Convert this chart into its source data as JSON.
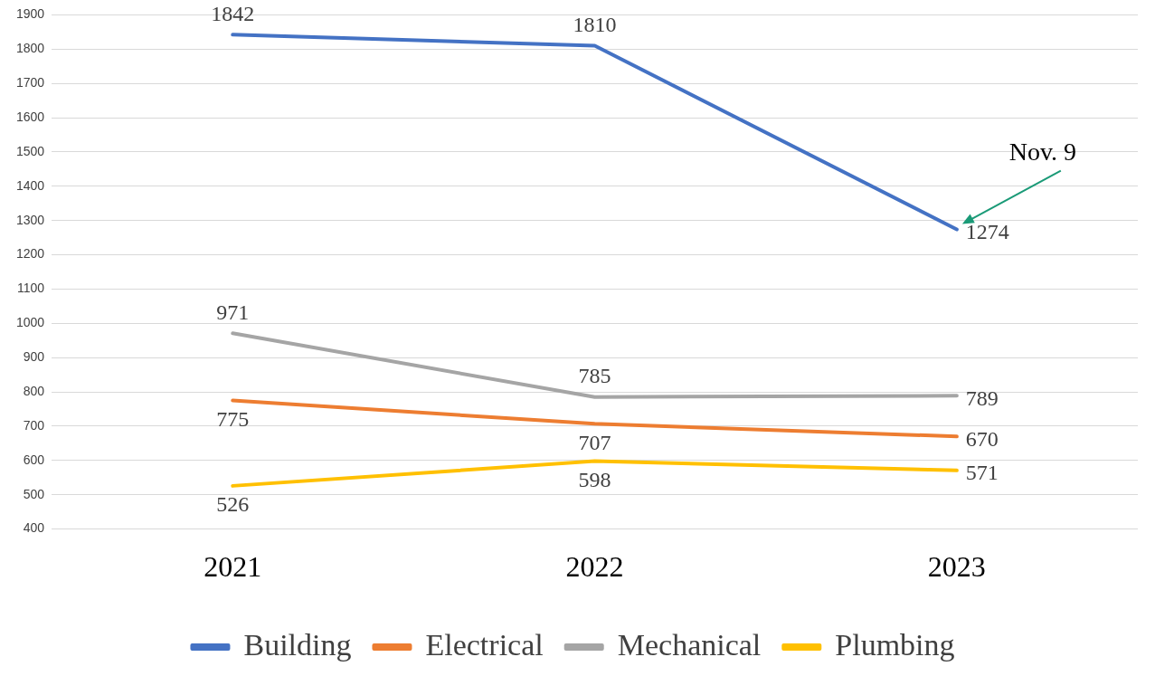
{
  "chart_data": {
    "type": "line",
    "categories": [
      "2021",
      "2022",
      "2023"
    ],
    "series": [
      {
        "name": "Building",
        "color": "#4472c4",
        "values": [
          1842,
          1810,
          1274
        ]
      },
      {
        "name": "Electrical",
        "color": "#ed7d31",
        "values": [
          775,
          707,
          670
        ]
      },
      {
        "name": "Mechanical",
        "color": "#a5a5a5",
        "values": [
          971,
          785,
          789
        ]
      },
      {
        "name": "Plumbing",
        "color": "#ffc000",
        "values": [
          526,
          598,
          571
        ]
      }
    ],
    "ylim": [
      400,
      1900
    ],
    "yticks": [
      400,
      500,
      600,
      700,
      800,
      900,
      1000,
      1100,
      1200,
      1300,
      1400,
      1500,
      1600,
      1700,
      1800,
      1900
    ],
    "grid": "y",
    "legend": "bottom",
    "data_labels": true,
    "marker": "none",
    "line_style": "solid",
    "annotations": [
      "Nov. 9"
    ]
  }
}
